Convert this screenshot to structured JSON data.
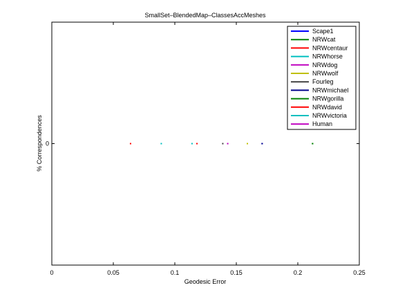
{
  "chart_data": {
    "type": "scatter",
    "title": "SmallSet–BlendedMap–ClassesAccMeshes",
    "xlabel": "Geodesic Error",
    "ylabel": "% Correspondences",
    "xlim": [
      0,
      0.25
    ],
    "xticks": [
      "0",
      "0.05",
      "0.1",
      "0.15",
      "0.2",
      "0.25"
    ],
    "xtick_values": [
      0,
      0.05,
      0.1,
      0.15,
      0.2,
      0.25
    ],
    "ytick_label": "0",
    "grid": false,
    "legend_position": "top-right",
    "series": [
      {
        "name": "Scape1",
        "color": "#0000ff",
        "x": 0.171,
        "y": 0
      },
      {
        "name": "NRWcat",
        "color": "#008000",
        "x": 0.212,
        "y": 0
      },
      {
        "name": "NRWcentaur",
        "color": "#ff0000",
        "x": 0.118,
        "y": 0
      },
      {
        "name": "NRWhorse",
        "color": "#00bfbf",
        "x": 0.089,
        "y": 0
      },
      {
        "name": "NRWdog",
        "color": "#bf00bf",
        "x": 0.143,
        "y": 0
      },
      {
        "name": "NRWwolf",
        "color": "#bfbf00",
        "x": 0.159,
        "y": 0
      },
      {
        "name": "Fourleg",
        "color": "#404040",
        "x": 0.139,
        "y": 0
      },
      {
        "name": "NRWmichael",
        "color": "#00008b",
        "x": 0.171,
        "y": 0
      },
      {
        "name": "NRWgorilla",
        "color": "#008000",
        "x": 0.212,
        "y": 0
      },
      {
        "name": "NRWdavid",
        "color": "#ff0000",
        "x": 0.064,
        "y": 0
      },
      {
        "name": "NRWvictoria",
        "color": "#00bfbf",
        "x": 0.114,
        "y": 0
      },
      {
        "name": "Human",
        "color": "#bf00bf",
        "x": 0.143,
        "y": 0
      }
    ]
  }
}
